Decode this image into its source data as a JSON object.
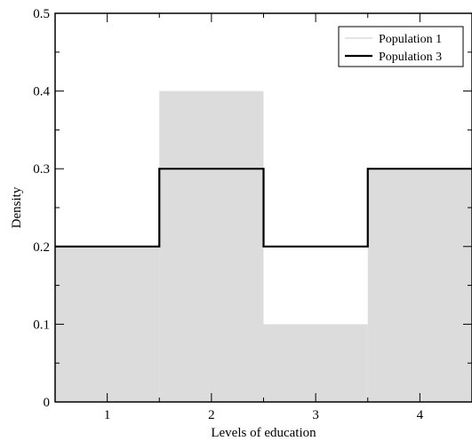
{
  "chart_data": {
    "type": "histogram",
    "xlabel": "Levels of education",
    "ylabel": "Density",
    "xlim": [
      0.5,
      4.5
    ],
    "ylim": [
      0,
      0.5
    ],
    "x_ticks": [
      "1",
      "2",
      "3",
      "4"
    ],
    "y_ticks": [
      "0",
      "0.1",
      "0.2",
      "0.3",
      "0.4",
      "0.5"
    ],
    "categories": [
      1,
      2,
      3,
      4
    ],
    "bin_edges": [
      0.5,
      1.5,
      2.5,
      3.5,
      4.5
    ],
    "series": [
      {
        "name": "Population 1",
        "style": "filled",
        "color": "#dcdcdc",
        "values": [
          0.2,
          0.4,
          0.1,
          0.3
        ]
      },
      {
        "name": "Population 3",
        "style": "step-line",
        "color": "#000000",
        "values": [
          0.2,
          0.3,
          0.2,
          0.3
        ]
      }
    ],
    "legend": {
      "position": "top-right"
    },
    "grid": false
  }
}
